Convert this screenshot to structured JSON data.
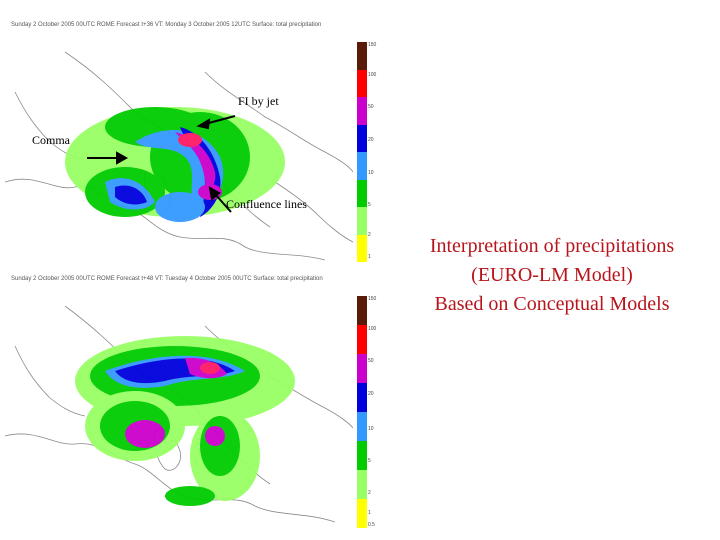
{
  "top_map": {
    "header": "Sunday 2 October 2005 00UTC ROME  Forecast t+36 VT: Monday 3 October 2005 12UTC Surface: total precipitation",
    "scale_ticks": [
      "150",
      "100",
      "50",
      "20",
      "10",
      "5",
      "2",
      "1"
    ]
  },
  "bottom_map": {
    "header": "Sunday 2 October 2005 00UTC ROME  Forecast t+48 VT: Tuesday 4 October 2005 00UTC Surface: total precipitation",
    "scale_ticks": [
      "150",
      "100",
      "50",
      "20",
      "10",
      "5",
      "2",
      "1",
      "0.5"
    ]
  },
  "annotations": {
    "fi_by_jet": "FI by jet",
    "comma": "Comma",
    "confluence": "Confluence lines"
  },
  "title": {
    "line1": "Interpretation of precipitations",
    "line2": "(EURO-LM Model)",
    "line3": "Based on Conceptual Models"
  },
  "colors": {
    "title": "#b8141b",
    "scale": [
      "#5a1a0a",
      "#ff0000",
      "#cc00cc",
      "#0000dd",
      "#3399ff",
      "#00cc00",
      "#99ff66",
      "#ffff00"
    ]
  }
}
